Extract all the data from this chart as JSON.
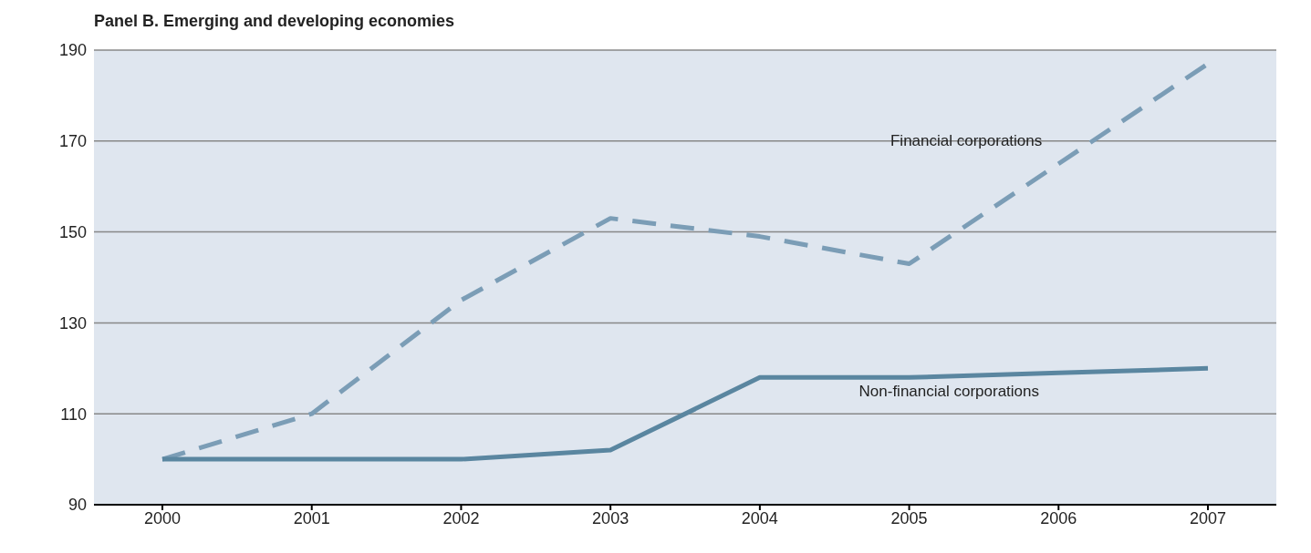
{
  "chart_data": {
    "type": "line",
    "title": "Panel B.  Emerging and developing economies",
    "categories": [
      "2000",
      "2001",
      "2002",
      "2003",
      "2004",
      "2005",
      "2006",
      "2007"
    ],
    "series": [
      {
        "name": "Financial corporations",
        "color": "#7b9db6",
        "line_style": "dashed",
        "values": [
          100,
          110,
          135,
          153,
          149,
          143,
          165,
          187
        ]
      },
      {
        "name": "Non-financial corporations",
        "color": "#5a86a0",
        "line_style": "solid",
        "values": [
          100,
          100,
          100,
          102,
          118,
          118,
          119,
          120
        ]
      }
    ],
    "ylim": [
      90,
      190
    ],
    "yticks": [
      90,
      110,
      130,
      150,
      170,
      190
    ],
    "grid": "y",
    "marker": "none"
  }
}
